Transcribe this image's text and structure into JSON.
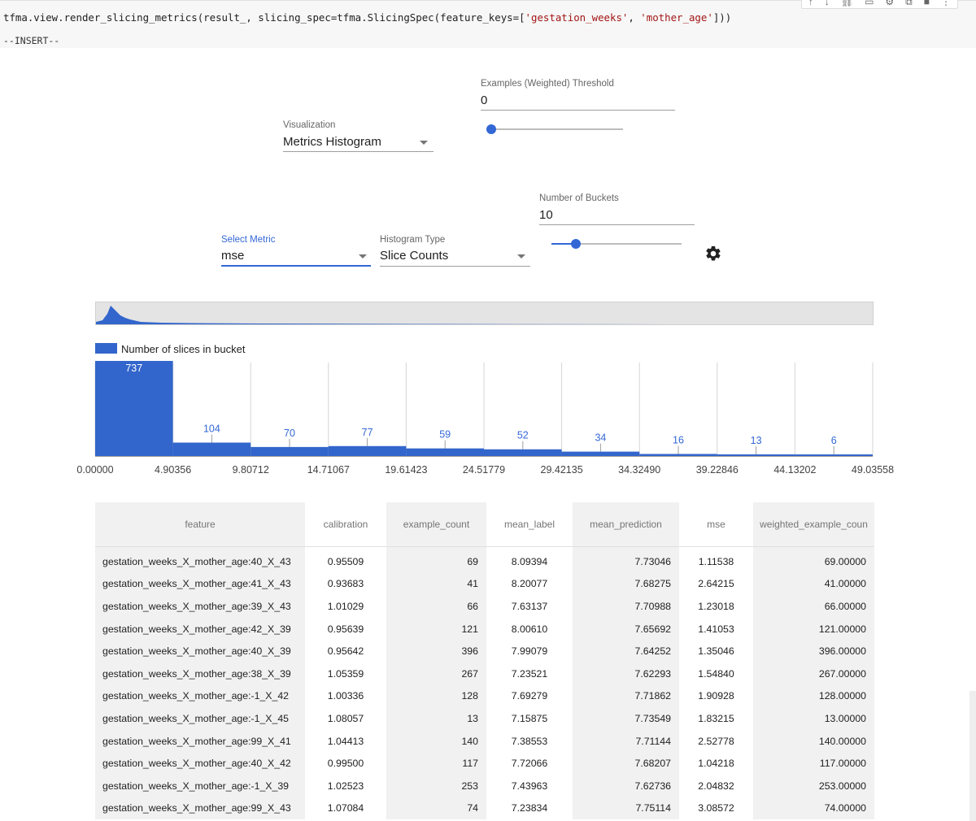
{
  "cell": {
    "code_prefix": "tfma.view.render_slicing_metrics(result_, slicing_spec=tfma.SlicingSpec(feature_keys=[",
    "key1": "'gestation_weeks'",
    "sep": ", ",
    "key2": "'mother_age'",
    "code_suffix": "]))",
    "mode": "--INSERT--"
  },
  "controls": {
    "threshold_label": "Examples (Weighted) Threshold",
    "threshold_value": "0",
    "threshold_slider_fraction": 0.0,
    "visualization_label": "Visualization",
    "visualization_value": "Metrics Histogram",
    "buckets_label": "Number of Buckets",
    "buckets_value": "10",
    "buckets_slider_fraction": 0.19,
    "metric_label": "Select Metric",
    "metric_value": "mse",
    "histogram_type_label": "Histogram Type",
    "histogram_type_value": "Slice Counts",
    "settings_icon": "gear-icon"
  },
  "chart_data": {
    "type": "bar",
    "legend": "Number of slices in bucket",
    "bin_edges": [
      "0.00000",
      "4.90356",
      "9.80712",
      "14.71067",
      "19.61423",
      "24.51779",
      "29.42135",
      "34.32490",
      "39.22846",
      "44.13202",
      "49.03558"
    ],
    "values": [
      737,
      104,
      70,
      77,
      59,
      52,
      34,
      16,
      13,
      6
    ],
    "ylim": [
      0,
      737
    ],
    "bar_color": "#3366cc",
    "grid": true
  },
  "table": {
    "columns": [
      "feature",
      "calibration",
      "example_count",
      "mean_label",
      "mean_prediction",
      "mse",
      "weighted_example_coun"
    ],
    "rows": [
      [
        "gestation_weeks_X_mother_age:40_X_43",
        "0.95509",
        "69",
        "8.09394",
        "7.73046",
        "1.11538",
        "69.00000"
      ],
      [
        "gestation_weeks_X_mother_age:41_X_43",
        "0.93683",
        "41",
        "8.20077",
        "7.68275",
        "2.64215",
        "41.00000"
      ],
      [
        "gestation_weeks_X_mother_age:39_X_43",
        "1.01029",
        "66",
        "7.63137",
        "7.70988",
        "1.23018",
        "66.00000"
      ],
      [
        "gestation_weeks_X_mother_age:42_X_39",
        "0.95639",
        "121",
        "8.00610",
        "7.65692",
        "1.41053",
        "121.00000"
      ],
      [
        "gestation_weeks_X_mother_age:40_X_39",
        "0.95642",
        "396",
        "7.99079",
        "7.64252",
        "1.35046",
        "396.00000"
      ],
      [
        "gestation_weeks_X_mother_age:38_X_39",
        "1.05359",
        "267",
        "7.23521",
        "7.62293",
        "1.54840",
        "267.00000"
      ],
      [
        "gestation_weeks_X_mother_age:-1_X_42",
        "1.00336",
        "128",
        "7.69279",
        "7.71862",
        "1.90928",
        "128.00000"
      ],
      [
        "gestation_weeks_X_mother_age:-1_X_45",
        "1.08057",
        "13",
        "7.15875",
        "7.73549",
        "1.83215",
        "13.00000"
      ],
      [
        "gestation_weeks_X_mother_age:99_X_41",
        "1.04413",
        "140",
        "7.38553",
        "7.71144",
        "2.52778",
        "140.00000"
      ],
      [
        "gestation_weeks_X_mother_age:40_X_42",
        "0.99500",
        "117",
        "7.72066",
        "7.68207",
        "1.04218",
        "117.00000"
      ],
      [
        "gestation_weeks_X_mother_age:-1_X_39",
        "1.02523",
        "253",
        "7.43963",
        "7.62736",
        "2.04832",
        "253.00000"
      ],
      [
        "gestation_weeks_X_mother_age:99_X_43",
        "1.07084",
        "74",
        "7.23834",
        "7.75114",
        "3.08572",
        "74.00000"
      ]
    ]
  }
}
